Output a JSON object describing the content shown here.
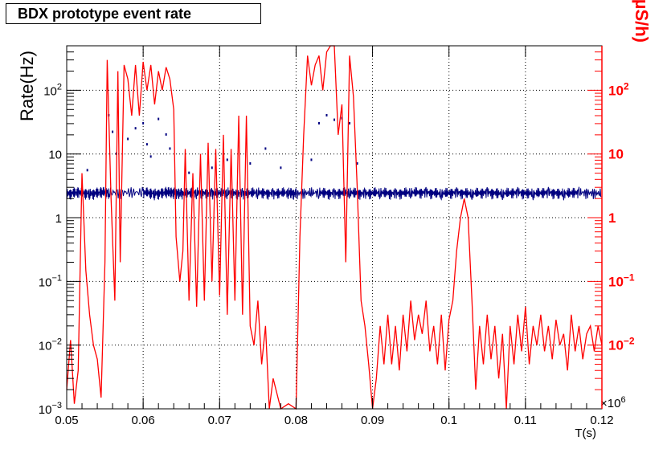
{
  "title": "BDX prototype event rate",
  "chart_data": {
    "type": "line",
    "title": "BDX prototype event rate",
    "xlabel": "T(s)",
    "x_exponent_label": "×10",
    "x_exponent_power": "6",
    "xlim": [
      0.05,
      0.12
    ],
    "x_ticks": [
      "0.05",
      "0.06",
      "0.07",
      "0.08",
      "0.09",
      "0.1",
      "0.11",
      "0.12"
    ],
    "grid": true,
    "left_axis": {
      "label": "Rate(Hz)",
      "scale": "log",
      "ylim": [
        0.001,
        500
      ],
      "ticks": [
        {
          "value": 0.001,
          "base": "10",
          "exp": "−3"
        },
        {
          "value": 0.01,
          "base": "10",
          "exp": "−2"
        },
        {
          "value": 0.1,
          "base": "10",
          "exp": "−1"
        },
        {
          "value": 1,
          "base": "1",
          "exp": ""
        },
        {
          "value": 10,
          "base": "10",
          "exp": ""
        },
        {
          "value": 100,
          "base": "10",
          "exp": "2"
        }
      ],
      "color": "#000000"
    },
    "right_axis": {
      "label": "RadCon dose (µS/h)",
      "scale": "log",
      "ylim": [
        0.001,
        500
      ],
      "ticks": [
        {
          "value": 0.01,
          "base": "10",
          "exp": "−2"
        },
        {
          "value": 0.1,
          "base": "10",
          "exp": "−1"
        },
        {
          "value": 1,
          "base": "1",
          "exp": ""
        },
        {
          "value": 10,
          "base": "10",
          "exp": ""
        },
        {
          "value": 100,
          "base": "10",
          "exp": "2"
        }
      ],
      "color": "#ff0000"
    },
    "series": [
      {
        "axis": "left",
        "color": "#000080",
        "style": "dense noisy line",
        "points": [
          [
            0.05,
            2.4
          ],
          [
            0.0515,
            2.5
          ],
          [
            0.053,
            2.4
          ],
          [
            0.0545,
            2.5
          ],
          [
            0.0555,
            2.5
          ],
          [
            0.06,
            2.5
          ],
          [
            0.0615,
            2.4
          ],
          [
            0.063,
            2.5
          ],
          [
            0.064,
            2.5
          ],
          [
            0.065,
            2.4
          ],
          [
            0.067,
            2.5
          ],
          [
            0.069,
            2.4
          ],
          [
            0.071,
            2.5
          ],
          [
            0.073,
            2.4
          ],
          [
            0.075,
            2.5
          ],
          [
            0.077,
            2.4
          ],
          [
            0.079,
            2.5
          ],
          [
            0.08,
            2.4
          ],
          [
            0.083,
            2.5
          ],
          [
            0.085,
            2.4
          ],
          [
            0.087,
            2.5
          ],
          [
            0.089,
            2.4
          ],
          [
            0.091,
            2.5
          ],
          [
            0.093,
            2.4
          ],
          [
            0.095,
            2.5
          ],
          [
            0.097,
            2.5
          ],
          [
            0.099,
            2.4
          ],
          [
            0.101,
            2.5
          ],
          [
            0.103,
            2.4
          ],
          [
            0.105,
            2.5
          ],
          [
            0.107,
            2.4
          ],
          [
            0.109,
            2.5
          ],
          [
            0.111,
            2.4
          ],
          [
            0.113,
            2.5
          ],
          [
            0.115,
            2.4
          ],
          [
            0.117,
            2.5
          ],
          [
            0.12,
            2.4
          ]
        ],
        "scatter_points": [
          [
            0.0527,
            5.5
          ],
          [
            0.0555,
            40
          ],
          [
            0.056,
            22
          ],
          [
            0.0565,
            10
          ],
          [
            0.058,
            17
          ],
          [
            0.059,
            25
          ],
          [
            0.06,
            30
          ],
          [
            0.0605,
            14
          ],
          [
            0.061,
            9
          ],
          [
            0.062,
            35
          ],
          [
            0.063,
            20
          ],
          [
            0.0635,
            12
          ],
          [
            0.066,
            5
          ],
          [
            0.069,
            6
          ],
          [
            0.071,
            8
          ],
          [
            0.074,
            7
          ],
          [
            0.076,
            12
          ],
          [
            0.078,
            6
          ],
          [
            0.082,
            8
          ],
          [
            0.083,
            30
          ],
          [
            0.084,
            40
          ],
          [
            0.085,
            34
          ],
          [
            0.086,
            36
          ],
          [
            0.087,
            30
          ],
          [
            0.088,
            7
          ]
        ]
      },
      {
        "axis": "right",
        "color": "#ff0000",
        "style": "line",
        "points": [
          [
            0.05,
            0.002
          ],
          [
            0.0505,
            0.012
          ],
          [
            0.051,
            0.0012
          ],
          [
            0.0515,
            0.004
          ],
          [
            0.052,
            5
          ],
          [
            0.0525,
            0.15
          ],
          [
            0.053,
            0.03
          ],
          [
            0.0535,
            0.01
          ],
          [
            0.054,
            0.006
          ],
          [
            0.0545,
            0.0015
          ],
          [
            0.055,
            0.2
          ],
          [
            0.0553,
            300
          ],
          [
            0.0558,
            2
          ],
          [
            0.0563,
            0.05
          ],
          [
            0.0567,
            200
          ],
          [
            0.057,
            0.2
          ],
          [
            0.0575,
            250
          ],
          [
            0.058,
            150
          ],
          [
            0.0585,
            40
          ],
          [
            0.059,
            250
          ],
          [
            0.0595,
            40
          ],
          [
            0.06,
            280
          ],
          [
            0.0605,
            100
          ],
          [
            0.061,
            250
          ],
          [
            0.0615,
            60
          ],
          [
            0.062,
            200
          ],
          [
            0.0625,
            100
          ],
          [
            0.063,
            230
          ],
          [
            0.0635,
            150
          ],
          [
            0.064,
            50
          ],
          [
            0.0643,
            0.5
          ],
          [
            0.0648,
            0.1
          ],
          [
            0.0652,
            0.3
          ],
          [
            0.0655,
            12
          ],
          [
            0.066,
            0.05
          ],
          [
            0.0665,
            5
          ],
          [
            0.067,
            0.04
          ],
          [
            0.0675,
            10
          ],
          [
            0.068,
            0.05
          ],
          [
            0.0685,
            15
          ],
          [
            0.069,
            0.1
          ],
          [
            0.0695,
            12
          ],
          [
            0.07,
            0.06
          ],
          [
            0.0705,
            20
          ],
          [
            0.071,
            0.03
          ],
          [
            0.0715,
            12
          ],
          [
            0.072,
            0.05
          ],
          [
            0.0725,
            40
          ],
          [
            0.073,
            0.03
          ],
          [
            0.0735,
            40
          ],
          [
            0.074,
            0.02
          ],
          [
            0.0745,
            0.01
          ],
          [
            0.075,
            0.05
          ],
          [
            0.0755,
            0.005
          ],
          [
            0.076,
            0.02
          ],
          [
            0.0765,
            0.001
          ],
          [
            0.077,
            0.003
          ],
          [
            0.078,
            0.001
          ],
          [
            0.079,
            0.0012
          ],
          [
            0.08,
            0.001
          ],
          [
            0.0805,
            0.5
          ],
          [
            0.081,
            20
          ],
          [
            0.0815,
            350
          ],
          [
            0.082,
            120
          ],
          [
            0.0825,
            250
          ],
          [
            0.083,
            350
          ],
          [
            0.0835,
            100
          ],
          [
            0.084,
            400
          ],
          [
            0.0845,
            500
          ],
          [
            0.085,
            500
          ],
          [
            0.0855,
            20
          ],
          [
            0.086,
            60
          ],
          [
            0.0865,
            0.2
          ],
          [
            0.087,
            350
          ],
          [
            0.0875,
            80
          ],
          [
            0.088,
            3
          ],
          [
            0.0885,
            0.05
          ],
          [
            0.089,
            0.02
          ],
          [
            0.0895,
            0.005
          ],
          [
            0.09,
            0.001
          ],
          [
            0.0905,
            0.003
          ],
          [
            0.091,
            0.02
          ],
          [
            0.0915,
            0.005
          ],
          [
            0.092,
            0.03
          ],
          [
            0.0925,
            0.005
          ],
          [
            0.093,
            0.02
          ],
          [
            0.0935,
            0.004
          ],
          [
            0.094,
            0.03
          ],
          [
            0.0945,
            0.008
          ],
          [
            0.095,
            0.05
          ],
          [
            0.0955,
            0.012
          ],
          [
            0.096,
            0.03
          ],
          [
            0.0965,
            0.015
          ],
          [
            0.097,
            0.05
          ],
          [
            0.0975,
            0.008
          ],
          [
            0.098,
            0.02
          ],
          [
            0.0985,
            0.005
          ],
          [
            0.099,
            0.03
          ],
          [
            0.0995,
            0.004
          ],
          [
            0.1,
            0.025
          ],
          [
            0.1005,
            0.05
          ],
          [
            0.101,
            0.3
          ],
          [
            0.1015,
            1
          ],
          [
            0.102,
            2
          ],
          [
            0.1025,
            1
          ],
          [
            0.103,
            0.05
          ],
          [
            0.1035,
            0.002
          ],
          [
            0.104,
            0.02
          ],
          [
            0.1045,
            0.005
          ],
          [
            0.105,
            0.03
          ],
          [
            0.1055,
            0.006
          ],
          [
            0.106,
            0.02
          ],
          [
            0.1065,
            0.003
          ],
          [
            0.107,
            0.015
          ],
          [
            0.1075,
            0.001
          ],
          [
            0.108,
            0.02
          ],
          [
            0.1085,
            0.005
          ],
          [
            0.109,
            0.03
          ],
          [
            0.1095,
            0.008
          ],
          [
            0.11,
            0.04
          ],
          [
            0.1105,
            0.005
          ],
          [
            0.111,
            0.02
          ],
          [
            0.1115,
            0.01
          ],
          [
            0.112,
            0.03
          ],
          [
            0.1125,
            0.008
          ],
          [
            0.113,
            0.02
          ],
          [
            0.1135,
            0.006
          ],
          [
            0.114,
            0.025
          ],
          [
            0.1145,
            0.01
          ],
          [
            0.115,
            0.015
          ],
          [
            0.1155,
            0.004
          ],
          [
            0.116,
            0.03
          ],
          [
            0.1165,
            0.008
          ],
          [
            0.117,
            0.02
          ],
          [
            0.1175,
            0.006
          ],
          [
            0.118,
            0.015
          ],
          [
            0.1185,
            0.02
          ],
          [
            0.119,
            0.008
          ],
          [
            0.1195,
            0.02
          ],
          [
            0.12,
            0.01
          ]
        ]
      }
    ]
  }
}
